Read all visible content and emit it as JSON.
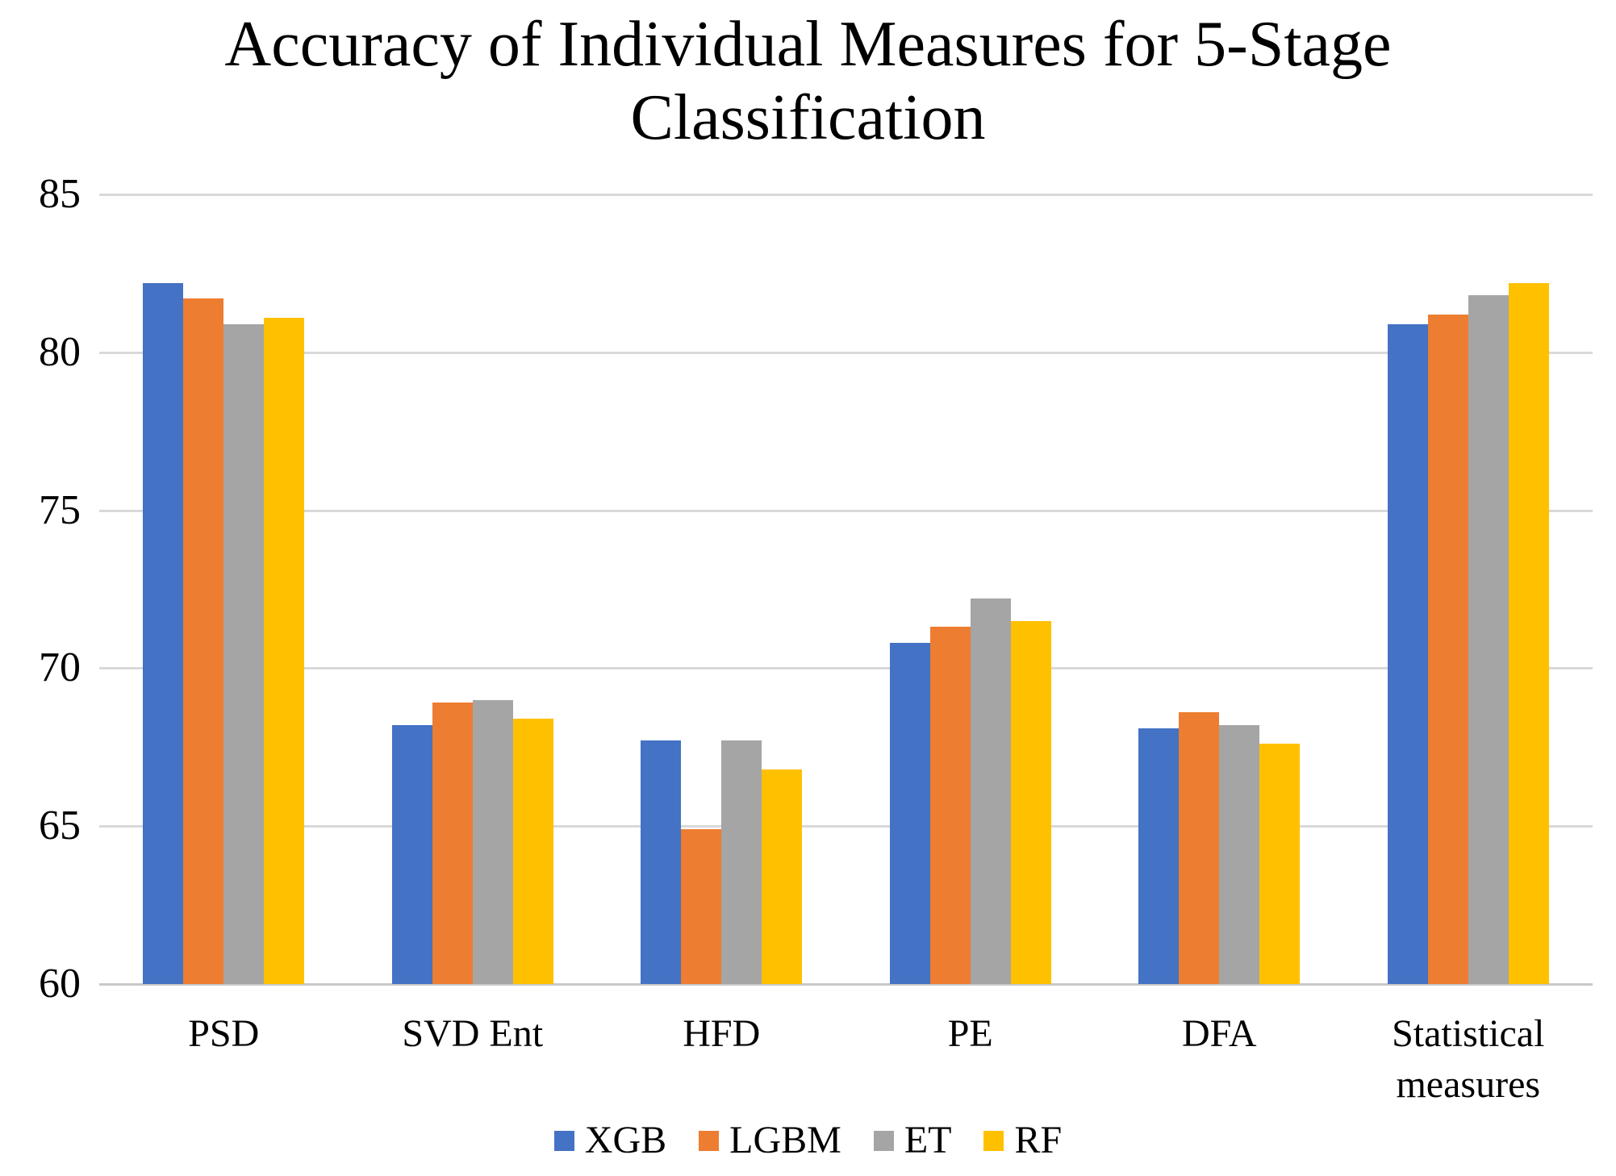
{
  "chart_data": {
    "type": "bar",
    "title": "Accuracy of Individual Measures for 5-Stage Classification",
    "categories": [
      "PSD",
      "SVD Ent",
      "HFD",
      "PE",
      "DFA",
      "Statistical measures"
    ],
    "series": [
      {
        "name": "XGB",
        "color": "#4472C4",
        "values": [
          82.2,
          68.2,
          67.7,
          70.8,
          68.1,
          80.9
        ]
      },
      {
        "name": "LGBM",
        "color": "#ED7D31",
        "values": [
          81.7,
          68.9,
          64.9,
          71.3,
          68.6,
          81.2
        ]
      },
      {
        "name": "ET",
        "color": "#A5A5A5",
        "values": [
          80.9,
          69.0,
          67.7,
          72.2,
          68.2,
          81.8
        ]
      },
      {
        "name": "RF",
        "color": "#FFC000",
        "values": [
          81.1,
          68.4,
          66.8,
          71.5,
          67.6,
          82.2
        ]
      }
    ],
    "xlabel": "",
    "ylabel": "",
    "ylim": [
      60,
      85
    ],
    "yticks": [
      60,
      65,
      70,
      75,
      80,
      85
    ],
    "grid": "horizontal",
    "legend_position": "bottom"
  },
  "colors": {
    "gridline": "#D9D9D9",
    "axis_line": "#C9C9C9",
    "text": "#000000"
  }
}
